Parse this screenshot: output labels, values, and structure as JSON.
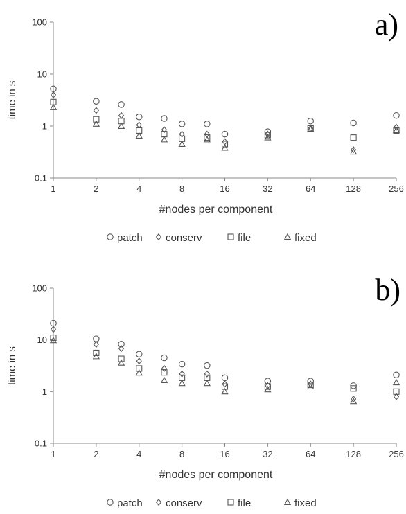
{
  "chart_data": [
    {
      "type": "scatter",
      "panel_label": "a)",
      "xlabel": "#nodes per component",
      "ylabel": "time in s",
      "x_scale": "log2",
      "y_scale": "log10",
      "xlim": [
        1,
        256
      ],
      "ylim": [
        0.1,
        100
      ],
      "x_ticks": [
        "1",
        "2",
        "4",
        "8",
        "16",
        "32",
        "64",
        "128",
        "256"
      ],
      "y_ticks": [
        "0.1",
        "1",
        "10",
        "100"
      ],
      "grid": false,
      "legend": "bottom",
      "series": [
        {
          "name": "patch",
          "marker": "circle",
          "x": [
            1,
            2,
            3,
            4,
            6,
            8,
            12,
            16,
            32,
            64,
            128,
            256
          ],
          "y": [
            5.2,
            3.0,
            2.6,
            1.5,
            1.4,
            1.1,
            1.1,
            0.7,
            0.78,
            1.25,
            1.15,
            1.6
          ]
        },
        {
          "name": "conserv",
          "marker": "diamond",
          "x": [
            1,
            2,
            3,
            4,
            6,
            8,
            12,
            16,
            32,
            64,
            128,
            256
          ],
          "y": [
            4.0,
            2.0,
            1.6,
            1.05,
            0.85,
            0.7,
            0.7,
            0.5,
            0.7,
            0.9,
            0.35,
            0.95
          ]
        },
        {
          "name": "file",
          "marker": "square",
          "x": [
            1,
            2,
            3,
            4,
            6,
            8,
            12,
            16,
            32,
            64,
            128,
            256
          ],
          "y": [
            2.9,
            1.35,
            1.25,
            0.82,
            0.7,
            0.57,
            0.6,
            0.45,
            0.67,
            0.9,
            0.6,
            0.82
          ]
        },
        {
          "name": "fixed",
          "marker": "triangle",
          "x": [
            1,
            2,
            3,
            4,
            6,
            8,
            12,
            16,
            32,
            64,
            128,
            256
          ],
          "y": [
            2.3,
            1.1,
            1.0,
            0.65,
            0.55,
            0.45,
            0.55,
            0.38,
            0.6,
            0.87,
            0.32,
            0.83
          ]
        }
      ]
    },
    {
      "type": "scatter",
      "panel_label": "b)",
      "xlabel": "#nodes per component",
      "ylabel": "time in s",
      "x_scale": "log2",
      "y_scale": "log10",
      "xlim": [
        1,
        256
      ],
      "ylim": [
        0.1,
        100
      ],
      "x_ticks": [
        "1",
        "2",
        "4",
        "8",
        "16",
        "32",
        "64",
        "128",
        "256"
      ],
      "y_ticks": [
        "0.1",
        "1",
        "10",
        "100"
      ],
      "grid": false,
      "legend": "bottom",
      "series": [
        {
          "name": "patch",
          "marker": "circle",
          "x": [
            1,
            2,
            3,
            4,
            6,
            8,
            12,
            16,
            32,
            64,
            128,
            256
          ],
          "y": [
            21,
            10.5,
            8.3,
            5.3,
            4.5,
            3.4,
            3.2,
            1.85,
            1.6,
            1.6,
            1.3,
            2.1
          ]
        },
        {
          "name": "conserv",
          "marker": "diamond",
          "x": [
            1,
            2,
            3,
            4,
            6,
            8,
            12,
            16,
            32,
            64,
            128,
            256
          ],
          "y": [
            16,
            8.2,
            6.8,
            3.9,
            2.8,
            2.2,
            2.2,
            1.4,
            1.3,
            1.4,
            0.72,
            0.8
          ]
        },
        {
          "name": "file",
          "marker": "square",
          "x": [
            1,
            2,
            3,
            4,
            6,
            8,
            12,
            16,
            32,
            64,
            128,
            256
          ],
          "y": [
            11,
            5.6,
            4.3,
            2.8,
            2.35,
            1.85,
            1.85,
            1.25,
            1.25,
            1.35,
            1.15,
            1.0
          ]
        },
        {
          "name": "fixed",
          "marker": "triangle",
          "x": [
            1,
            2,
            3,
            4,
            6,
            8,
            12,
            16,
            32,
            64,
            128,
            256
          ],
          "y": [
            9.8,
            4.8,
            3.6,
            2.3,
            1.65,
            1.45,
            1.45,
            1.0,
            1.1,
            1.25,
            0.65,
            1.5
          ]
        }
      ]
    }
  ]
}
